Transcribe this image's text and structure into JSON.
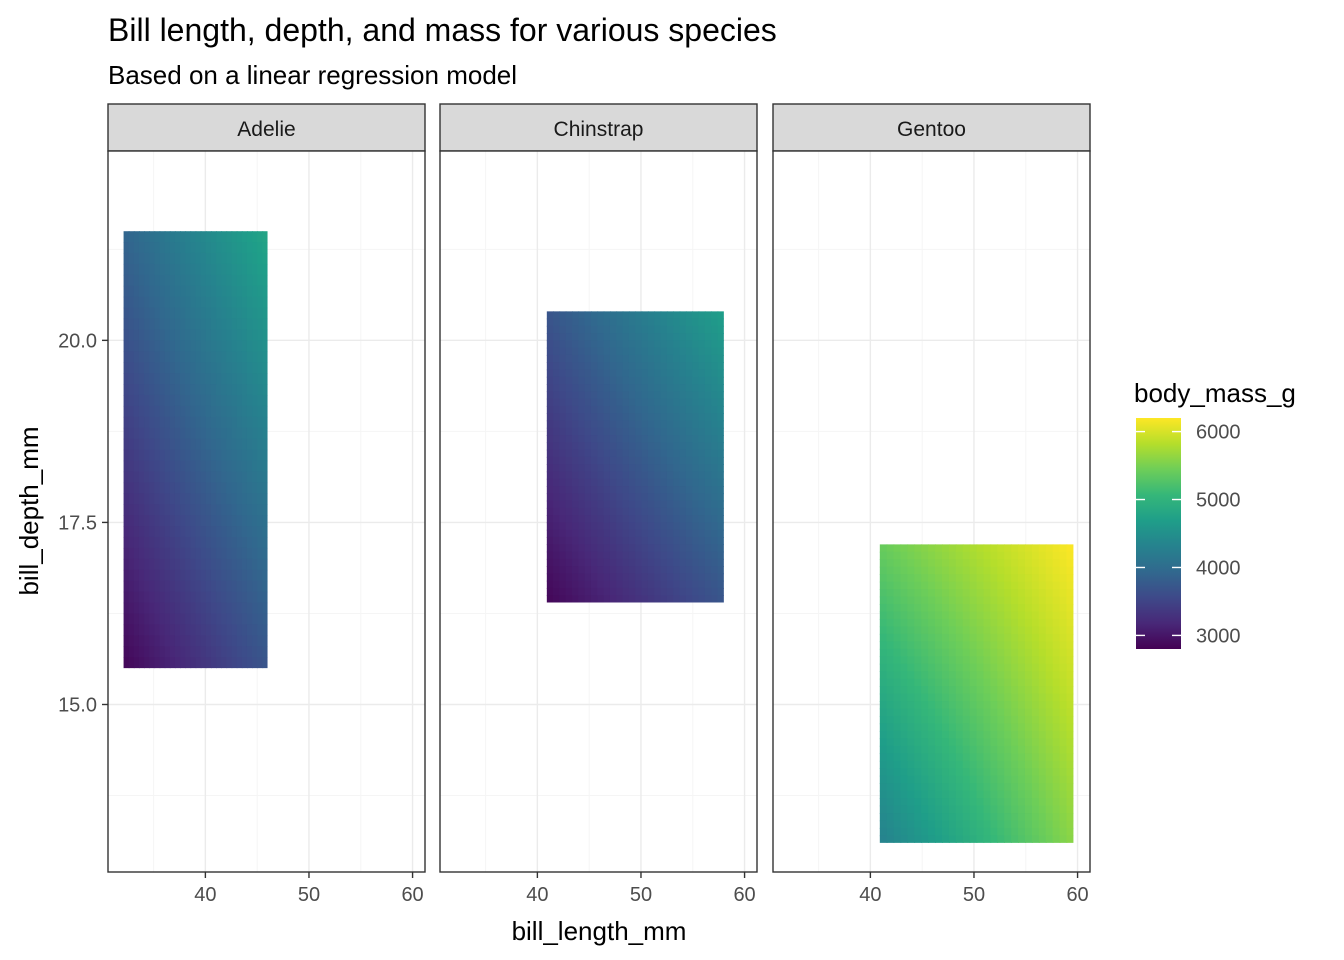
{
  "title": "Bill length, depth, and mass for various species",
  "subtitle": "Based on a linear regression model",
  "xlabel": "bill_length_mm",
  "ylabel": "bill_depth_mm",
  "legend_title": "body_mass_g",
  "x_ticks": [
    40,
    50,
    60
  ],
  "x_tick_labels": [
    "40",
    "50",
    "60"
  ],
  "y_ticks": [
    15.0,
    17.5,
    20.0
  ],
  "y_tick_labels": [
    "15.0",
    "17.5",
    "20.0"
  ],
  "legend_ticks": [
    3000,
    4000,
    5000,
    6000
  ],
  "legend_tick_labels": [
    "3000",
    "4000",
    "5000",
    "6000"
  ],
  "colors": {
    "strip_fill": "#d9d9d9",
    "panel_border": "#333333",
    "grid_major": "#ebebeb",
    "grid_minor": "#f5f5f5",
    "viridis": [
      "#440154",
      "#482878",
      "#3e4989",
      "#31688e",
      "#26828e",
      "#1f9e89",
      "#35b779",
      "#6ece58",
      "#b5de2b",
      "#fde725"
    ]
  },
  "chart_data": {
    "type": "heatmap",
    "facet_by": "species",
    "xlim": [
      30.6,
      61.2
    ],
    "ylim": [
      12.7,
      22.6
    ],
    "color_scale": "viridis",
    "color_range": [
      2800,
      6200
    ],
    "legend_position": "right",
    "grid": true,
    "panels": [
      {
        "name": "Adelie",
        "x_range": [
          32.1,
          46.0
        ],
        "y_range": [
          15.5,
          21.5
        ],
        "corner_values": {
          "bottom_left": 2850,
          "bottom_right": 3700,
          "top_left": 3900,
          "top_right": 4800
        }
      },
      {
        "name": "Chinstrap",
        "x_range": [
          40.9,
          58.0
        ],
        "y_range": [
          16.4,
          20.4
        ],
        "corner_values": {
          "bottom_left": 2850,
          "bottom_right": 3700,
          "top_left": 3700,
          "top_right": 4700
        }
      },
      {
        "name": "Gentoo",
        "x_range": [
          40.9,
          59.6
        ],
        "y_range": [
          13.1,
          17.2
        ],
        "corner_values": {
          "bottom_left": 4300,
          "bottom_right": 5600,
          "top_left": 5400,
          "top_right": 6200
        }
      }
    ]
  }
}
